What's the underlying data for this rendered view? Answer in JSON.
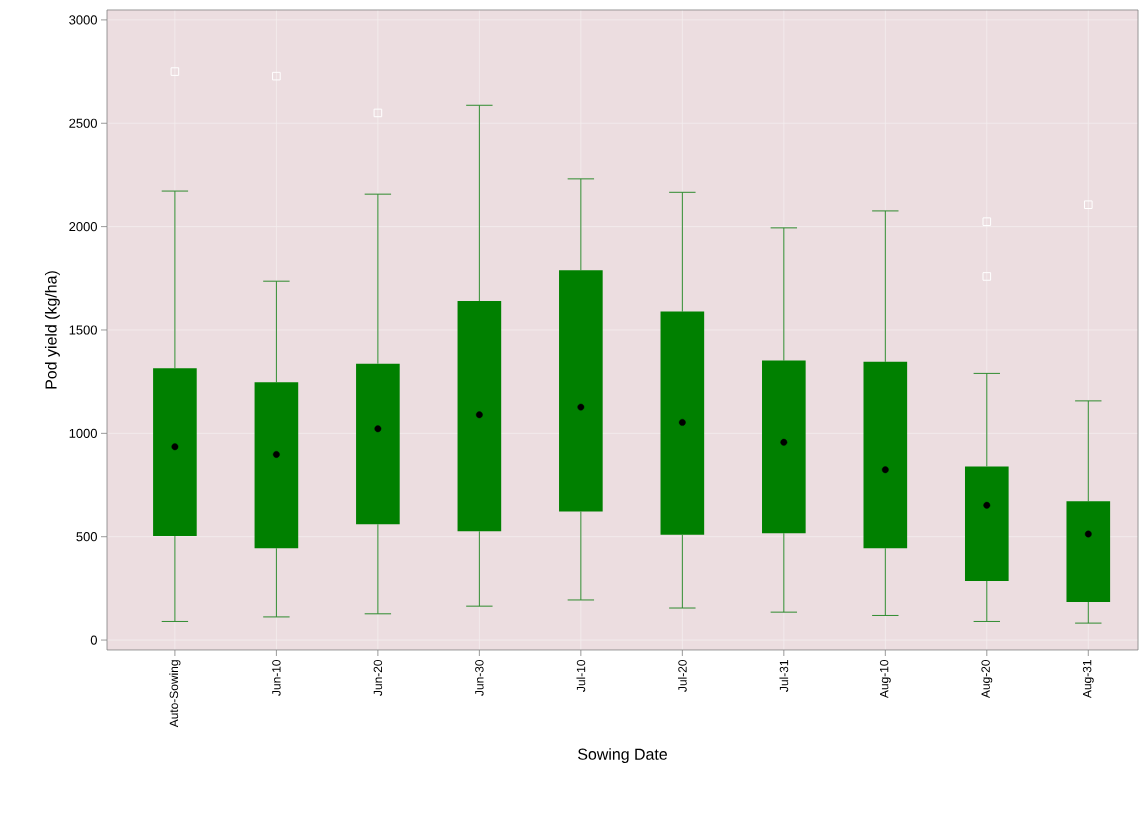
{
  "chart_data": {
    "type": "box",
    "xlabel": "Sowing Date",
    "ylabel": "Pod yield (kg/ha)",
    "categories": [
      "Auto-Sowing",
      "Jun-10",
      "Jun-20",
      "Jun-30",
      "Jul-10",
      "Jul-20",
      "Jul-31",
      "Aug-10",
      "Aug-20",
      "Aug-31"
    ],
    "color": "#008000",
    "grid": true,
    "ylim": [
      -48,
      3048
    ],
    "yticks": [
      0,
      500,
      1000,
      1500,
      2000,
      2500,
      3000
    ],
    "boxes": [
      {
        "low": 90,
        "q1": 503,
        "median": null,
        "q3": 1315,
        "high": 2172,
        "mean": 935,
        "outliers": [
          2750
        ]
      },
      {
        "low": 112,
        "q1": 444,
        "median": null,
        "q3": 1247,
        "high": 1736,
        "mean": 898,
        "outliers": [
          2728
        ]
      },
      {
        "low": 127,
        "q1": 560,
        "median": null,
        "q3": 1337,
        "high": 2157,
        "mean": 1022,
        "outliers": [
          2550
        ]
      },
      {
        "low": 164,
        "q1": 526,
        "median": null,
        "q3": 1640,
        "high": 2587,
        "mean": 1090
      },
      {
        "low": 194,
        "q1": 622,
        "median": null,
        "q3": 1789,
        "high": 2231,
        "mean": 1127
      },
      {
        "low": 155,
        "q1": 509,
        "median": null,
        "q3": 1589,
        "high": 2166,
        "mean": 1053
      },
      {
        "low": 135,
        "q1": 517,
        "median": null,
        "q3": 1352,
        "high": 1994,
        "mean": 957
      },
      {
        "low": 119,
        "q1": 444,
        "median": null,
        "q3": 1346,
        "high": 2076,
        "mean": 824
      },
      {
        "low": 90,
        "q1": 286,
        "median": null,
        "q3": 840,
        "high": 1290,
        "mean": 652,
        "outliers": [
          2024,
          1759
        ]
      },
      {
        "low": 82,
        "q1": 184,
        "median": null,
        "q3": 671,
        "high": 1157,
        "mean": 513,
        "outliers": [
          2106
        ]
      }
    ]
  }
}
